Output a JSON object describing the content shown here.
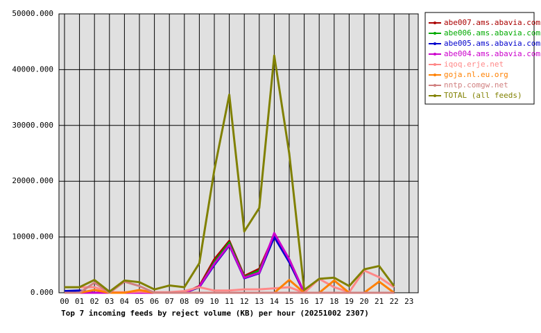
{
  "chart_data": {
    "type": "line",
    "title": "Top 7 incoming feeds by reject volume (KB) per hour (20251002 2307)",
    "categories": [
      "00",
      "01",
      "02",
      "03",
      "04",
      "05",
      "06",
      "07",
      "08",
      "09",
      "10",
      "11",
      "12",
      "13",
      "14",
      "15",
      "16",
      "17",
      "18",
      "19",
      "20",
      "21",
      "22",
      "23"
    ],
    "ylim": [
      0,
      50000
    ],
    "yticks": [
      {
        "value": 0,
        "label": "0.000"
      },
      {
        "value": 10000,
        "label": "10000.000"
      },
      {
        "value": 20000,
        "label": "20000.000"
      },
      {
        "value": 30000,
        "label": "30000.000"
      },
      {
        "value": 40000,
        "label": "40000.000"
      },
      {
        "value": 50000,
        "label": "50000.000"
      }
    ],
    "grid": true,
    "legend": "right",
    "series": [
      {
        "name": "abe007.ams.abavia.com",
        "color": "#aa0000",
        "values": [
          0,
          0,
          0,
          0,
          0,
          0,
          0,
          0,
          0,
          1200,
          6000,
          9300,
          3000,
          4300,
          10300,
          5500,
          0,
          0,
          0,
          0,
          0,
          0,
          0,
          null
        ]
      },
      {
        "name": "abe006.ams.abavia.com",
        "color": "#00aa00",
        "values": [
          0,
          0,
          0,
          0,
          0,
          0,
          0,
          0,
          0,
          1000,
          5500,
          9000,
          2800,
          4000,
          10000,
          6000,
          0,
          0,
          0,
          0,
          0,
          0,
          0,
          null
        ]
      },
      {
        "name": "abe005.ams.abavia.com",
        "color": "#0000cc",
        "values": [
          300,
          400,
          0,
          0,
          0,
          0,
          0,
          0,
          0,
          1000,
          5000,
          8500,
          2600,
          3500,
          10000,
          5500,
          0,
          0,
          0,
          0,
          0,
          0,
          0,
          null
        ]
      },
      {
        "name": "abe004.ams.abavia.com",
        "color": "#cc00cc",
        "values": [
          0,
          0,
          0,
          0,
          0,
          0,
          0,
          0,
          0,
          1100,
          5200,
          8600,
          2700,
          3600,
          10700,
          6000,
          0,
          0,
          0,
          0,
          0,
          0,
          0,
          null
        ]
      },
      {
        "name": "iqoq.erje.net",
        "color": "#ff8888",
        "values": [
          1000,
          1000,
          1000,
          100,
          100,
          200,
          100,
          100,
          300,
          1000,
          400,
          400,
          600,
          600,
          800,
          1000,
          0,
          2500,
          1000,
          100,
          4000,
          2800,
          1000,
          null
        ]
      },
      {
        "name": "goja.nl.eu.org",
        "color": "#ff8000",
        "values": [
          0,
          0,
          500,
          0,
          0,
          500,
          0,
          0,
          0,
          0,
          0,
          0,
          0,
          0,
          0,
          2300,
          0,
          0,
          2200,
          0,
          0,
          2000,
          0,
          null
        ]
      },
      {
        "name": "nntp.comgw.net",
        "color": "#d08080",
        "values": [
          0,
          0,
          1800,
          0,
          2000,
          1200,
          0,
          0,
          0,
          0,
          0,
          0,
          0,
          0,
          0,
          0,
          0,
          0,
          0,
          0,
          0,
          0,
          0,
          null
        ]
      },
      {
        "name": "TOTAL (all feeds)",
        "color": "#808000",
        "values": [
          1000,
          1000,
          2300,
          200,
          2200,
          1900,
          600,
          1300,
          1000,
          5300,
          22000,
          35500,
          11000,
          15200,
          42500,
          25000,
          500,
          2500,
          2700,
          1200,
          4200,
          4800,
          1200,
          null
        ]
      }
    ]
  }
}
